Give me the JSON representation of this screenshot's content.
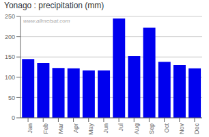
{
  "chart_data": {
    "type": "bar",
    "title": "Yonago : precipitation (mm)",
    "categories": [
      "Jan",
      "Feb",
      "Mar",
      "Apr",
      "May",
      "Jun",
      "Jul",
      "Aug",
      "Sep",
      "Oct",
      "Nov",
      "Dec"
    ],
    "values": [
      145,
      135,
      123,
      122,
      117,
      117,
      245,
      152,
      222,
      138,
      130,
      122
    ],
    "color": "#0000ee",
    "ylim": [
      0,
      250
    ],
    "yticks": [
      0,
      50,
      100,
      150,
      200,
      250
    ],
    "grid": true,
    "annotations": [
      "www.allmetsat.com"
    ]
  }
}
